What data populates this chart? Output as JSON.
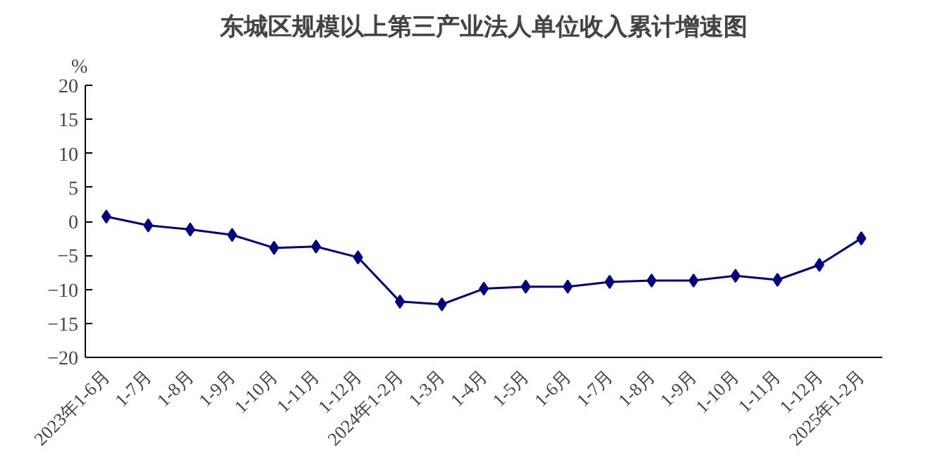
{
  "chart_data": {
    "type": "line",
    "title": "东城区规模以上第三产业法人单位收入累计增速图",
    "ylabel": "%",
    "categories": [
      "2023年1-6月",
      "1-7月",
      "1-8月",
      "1-9月",
      "1-10月",
      "1-11月",
      "1-12月",
      "2024年1-2月",
      "1-3月",
      "1-4月",
      "1-5月",
      "1-6月",
      "1-7月",
      "1-8月",
      "1-9月",
      "1-10月",
      "1-11月",
      "1-12月",
      "2025年1-2月"
    ],
    "series": [
      {
        "color": "#000080",
        "values": [
          0.7,
          -0.6,
          -1.2,
          -2.0,
          -3.9,
          -3.7,
          -5.3,
          -11.8,
          -12.2,
          -9.9,
          -9.6,
          -9.6,
          -8.9,
          -8.7,
          -8.7,
          -8.0,
          -8.6,
          -6.4,
          -2.5
        ]
      }
    ],
    "ylim": [
      -20,
      20
    ],
    "yticks": [
      -20,
      -15,
      -10,
      -5,
      0,
      5,
      10,
      15,
      20
    ],
    "grid": false,
    "marker": "diamond",
    "line_style": "solid"
  }
}
